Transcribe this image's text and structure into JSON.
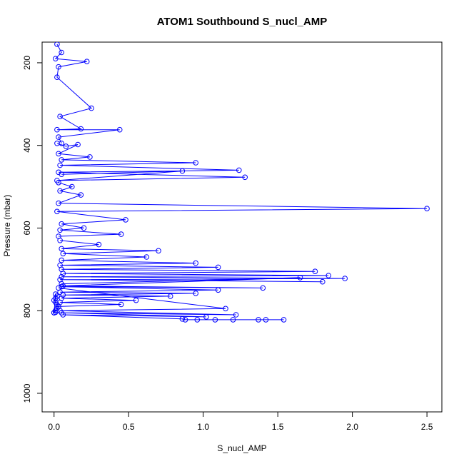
{
  "chart_data": {
    "type": "line",
    "title": "ATOM1 Southbound S_nucl_AMP",
    "xlabel": "S_nucl_AMP",
    "ylabel": "Pressure (mbar)",
    "xlim": [
      -0.08,
      2.6
    ],
    "ylim": [
      1045,
      150
    ],
    "y_reversed": true,
    "x_ticks": [
      "0.0",
      "0.5",
      "1.0",
      "1.5",
      "2.0",
      "2.5"
    ],
    "y_ticks": [
      "200",
      "400",
      "600",
      "800",
      "1000"
    ],
    "marker": "open-circle",
    "color": "#0000ff",
    "series": [
      {
        "x": [
          0.02,
          0.05,
          0.01,
          0.22,
          0.03,
          0.02,
          0.25,
          0.04,
          0.18,
          0.02,
          0.44,
          0.03,
          0.05
        ],
        "y": [
          155,
          175,
          190,
          197,
          210,
          235,
          310,
          330,
          360,
          362,
          362,
          380,
          395
        ]
      },
      {
        "x": [
          0.02,
          0.08,
          0.16,
          0.03,
          0.24,
          0.05,
          0.95,
          0.04,
          1.24,
          0.03,
          1.28,
          0.02,
          0.86,
          0.05
        ],
        "y": [
          395,
          402,
          398,
          420,
          428,
          435,
          442,
          448,
          460,
          465,
          477,
          485,
          462,
          470
        ]
      },
      {
        "x": [
          0.03,
          0.12,
          0.04,
          0.18,
          0.03,
          2.5,
          0.02,
          0.48,
          0.05,
          0.2,
          0.04,
          0.45,
          0.03
        ],
        "y": [
          490,
          500,
          510,
          520,
          540,
          553,
          560,
          580,
          590,
          600,
          605,
          615,
          620
        ]
      },
      {
        "x": [
          0.04,
          0.3,
          0.05,
          0.7,
          0.06,
          0.62,
          0.05,
          0.95,
          0.04,
          1.1,
          0.05,
          1.75,
          0.06,
          1.84,
          0.05,
          1.95,
          0.04,
          1.8
        ],
        "y": [
          630,
          640,
          650,
          655,
          662,
          670,
          678,
          685,
          690,
          695,
          700,
          705,
          710,
          715,
          718,
          722,
          725,
          730
        ]
      },
      {
        "x": [
          0.05,
          1.65,
          0.06,
          1.4,
          0.05,
          1.1,
          0.04,
          0.95,
          0.06,
          0.78,
          0.05,
          0.55,
          0.04,
          0.45,
          0.03
        ],
        "y": [
          735,
          720,
          740,
          745,
          742,
          750,
          755,
          758,
          762,
          765,
          770,
          775,
          780,
          785,
          790
        ]
      },
      {
        "x": [
          0.03,
          1.15,
          0.04,
          1.22,
          0.05,
          1.02,
          0.06,
          0.86,
          0.88,
          0.96,
          1.08,
          1.2,
          1.37,
          1.42,
          1.54
        ],
        "y": [
          745,
          795,
          800,
          810,
          805,
          815,
          810,
          820,
          822,
          822,
          822,
          822,
          822,
          822,
          822
        ]
      },
      {
        "x": [
          0.0,
          0.01,
          0.02,
          0.03,
          0.02,
          0.01,
          0.0,
          0.01,
          0.02,
          0.01,
          0.0,
          0.01
        ],
        "y": [
          805,
          800,
          795,
          790,
          785,
          780,
          775,
          770,
          765,
          760,
          805,
          804
        ]
      }
    ]
  }
}
